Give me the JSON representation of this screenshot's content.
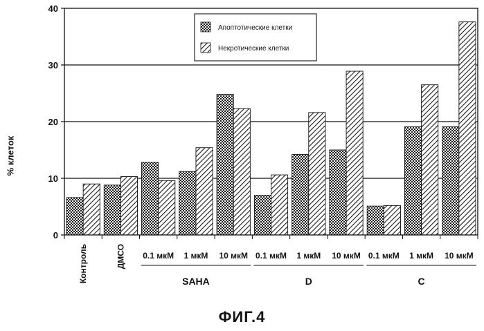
{
  "figure_caption": "ФИГ.4",
  "chart_data": {
    "type": "bar",
    "ylabel": "% клеток",
    "ylim": [
      0,
      40
    ],
    "yticks": [
      0,
      10,
      20,
      30,
      40
    ],
    "grid": "horizontal",
    "legend_position": "top-center",
    "categories": [
      "Контроль",
      "ДМСО",
      "0.1 мкМ",
      "1 мкМ",
      "10 мкМ",
      "0.1 мкМ",
      "1 мкМ",
      "10 мкМ",
      "0.1 мкМ",
      "1 мкМ",
      "10 мкМ"
    ],
    "groups": [
      {
        "label": "SAHA",
        "categories": [
          2,
          3,
          4
        ]
      },
      {
        "label": "D",
        "categories": [
          5,
          6,
          7
        ]
      },
      {
        "label": "C",
        "categories": [
          8,
          9,
          10
        ]
      }
    ],
    "series": [
      {
        "name": "Апоптотические клетки",
        "pattern": "crosshatch",
        "values": [
          6.6,
          8.8,
          12.8,
          11.2,
          24.8,
          7.0,
          14.2,
          15.0,
          5.1,
          19.1,
          19.1
        ]
      },
      {
        "name": "Некротические клетки",
        "pattern": "diagonal",
        "values": [
          9.0,
          10.3,
          9.6,
          15.4,
          22.3,
          10.6,
          21.6,
          28.9,
          5.2,
          26.5,
          37.6
        ]
      }
    ]
  }
}
